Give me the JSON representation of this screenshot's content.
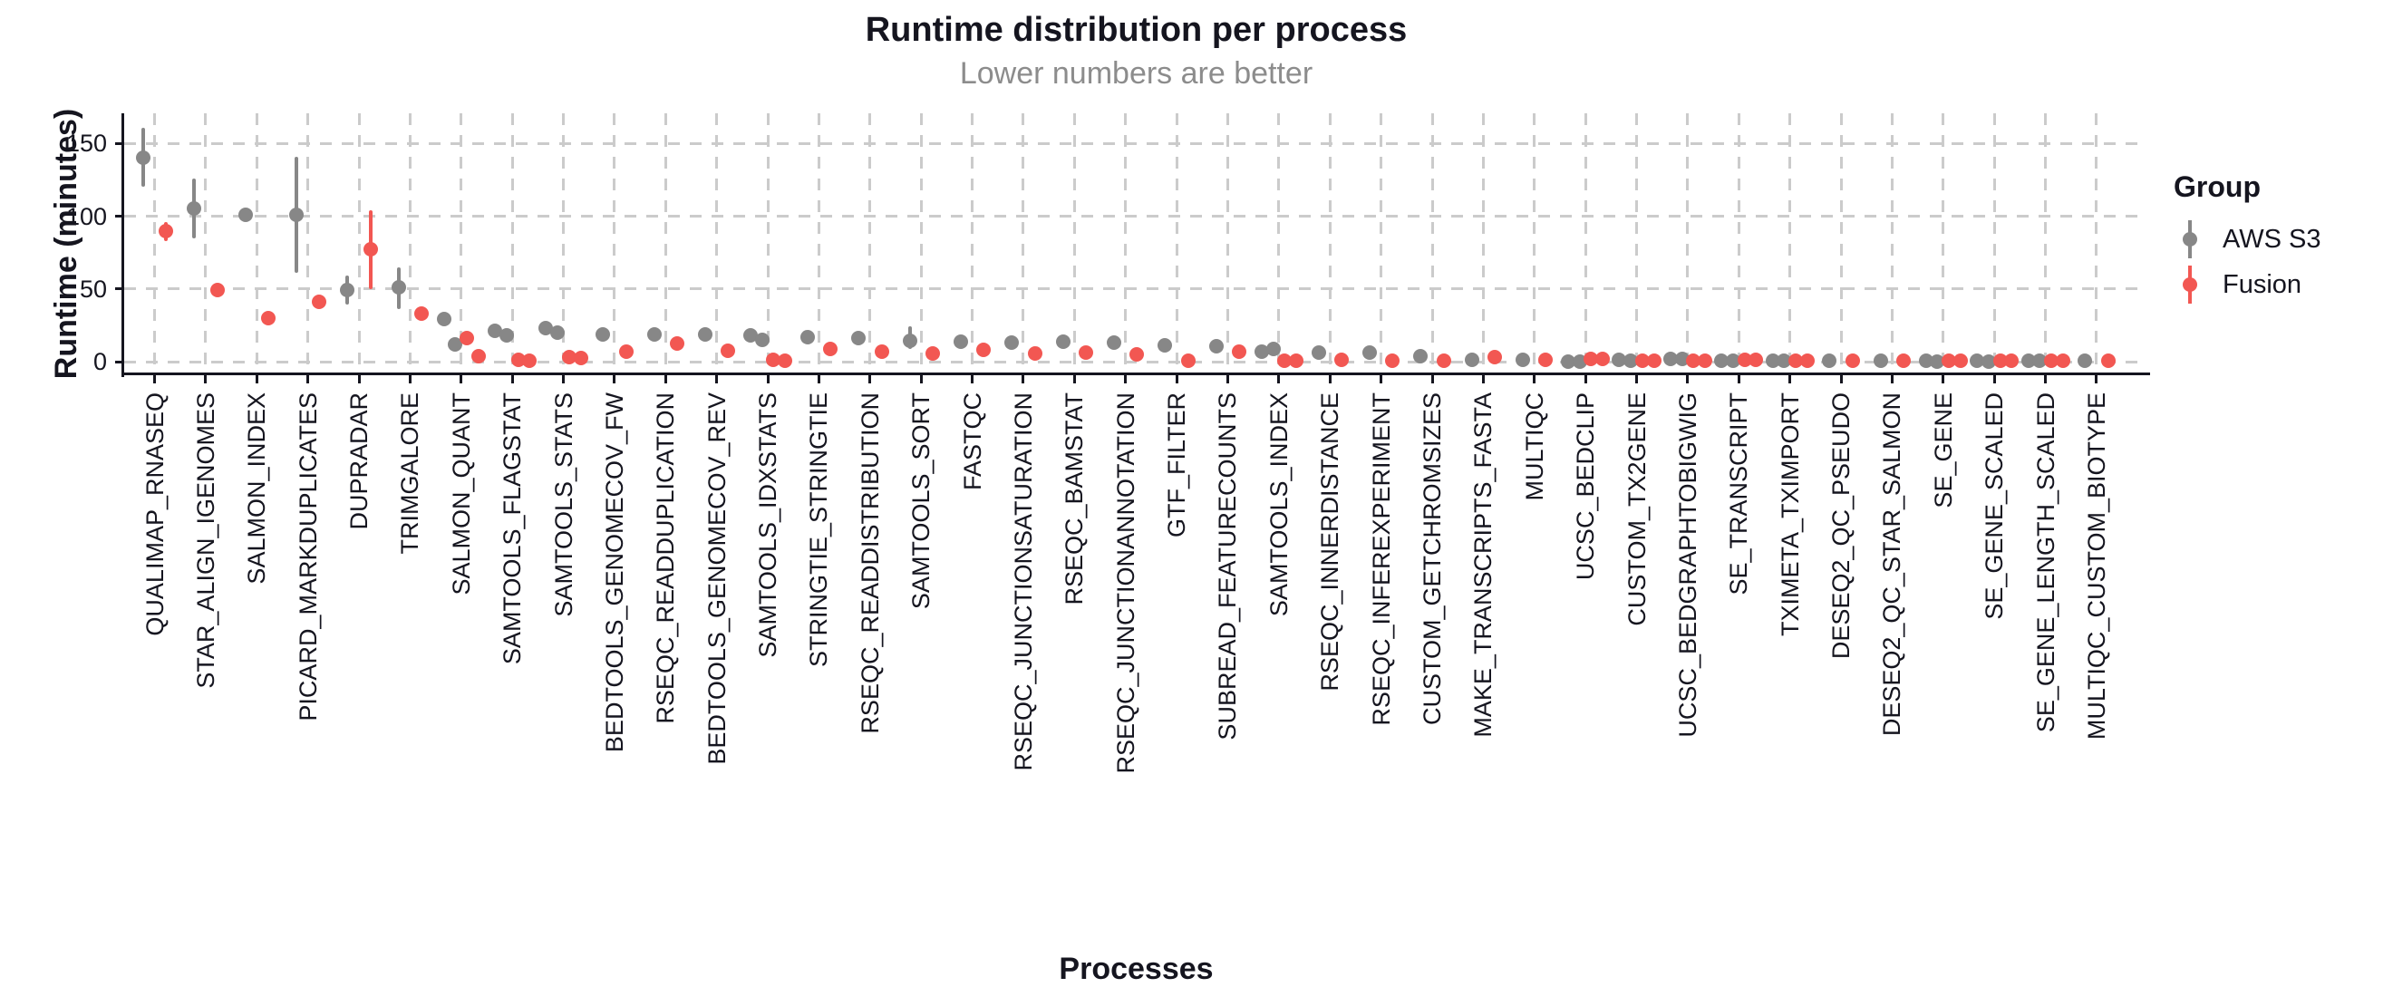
{
  "chart_data": {
    "type": "scatter",
    "subtype": "pointrange-dodged",
    "title": "Runtime distribution per process",
    "subtitle": "Lower numbers are better",
    "xlabel": "Processes",
    "ylabel": "Runtime (minutes)",
    "units": "minutes",
    "ylim": [
      0,
      170
    ],
    "yticks": [
      0,
      50,
      100,
      150
    ],
    "grid": "dashed-horizontal-and-vertical",
    "legend": {
      "title": "Group",
      "position": "right",
      "items": [
        {
          "id": "aws",
          "label": "AWS S3"
        },
        {
          "id": "fusion",
          "label": "Fusion"
        }
      ]
    },
    "colors": {
      "aws": "#878787",
      "fusion": "#F25752",
      "axis": "#15151F",
      "grid": "#CBCBCB",
      "subtitle_text": "#8C8C8C"
    },
    "note": "v = median runtime in minutes; lo/hi = visible range bar; points listed left-to-right per process (AWS S3 first, then Fusion)",
    "processes": [
      {
        "name": "QUALIMAP_RNASEQ",
        "points": [
          {
            "g": "aws",
            "v": 140,
            "lo": 120,
            "hi": 161
          },
          {
            "g": "fusion",
            "v": 90,
            "lo": 83,
            "hi": 96
          }
        ]
      },
      {
        "name": "STAR_ALIGN_IGENOMES",
        "points": [
          {
            "g": "aws",
            "v": 105,
            "lo": 85,
            "hi": 126
          },
          {
            "g": "fusion",
            "v": 49
          }
        ]
      },
      {
        "name": "SALMON_INDEX",
        "points": [
          {
            "g": "aws",
            "v": 101
          },
          {
            "g": "fusion",
            "v": 30
          }
        ]
      },
      {
        "name": "PICARD_MARKDUPLICATES",
        "points": [
          {
            "g": "aws",
            "v": 101,
            "lo": 61,
            "hi": 141
          },
          {
            "g": "fusion",
            "v": 41
          }
        ]
      },
      {
        "name": "DUPRADAR",
        "points": [
          {
            "g": "aws",
            "v": 49,
            "lo": 39,
            "hi": 59
          },
          {
            "g": "fusion",
            "v": 77,
            "lo": 50,
            "hi": 104
          }
        ]
      },
      {
        "name": "TRIMGALORE",
        "points": [
          {
            "g": "aws",
            "v": 51,
            "lo": 36,
            "hi": 65
          },
          {
            "g": "fusion",
            "v": 33
          }
        ]
      },
      {
        "name": "SALMON_QUANT",
        "points": [
          {
            "g": "aws",
            "v": 29
          },
          {
            "g": "aws",
            "v": 12
          },
          {
            "g": "fusion",
            "v": 16
          },
          {
            "g": "fusion",
            "v": 4
          }
        ]
      },
      {
        "name": "SAMTOOLS_FLAGSTAT",
        "points": [
          {
            "g": "aws",
            "v": 21
          },
          {
            "g": "aws",
            "v": 18
          },
          {
            "g": "fusion",
            "v": 1
          },
          {
            "g": "fusion",
            "v": 0.5
          }
        ]
      },
      {
        "name": "SAMTOOLS_STATS",
        "points": [
          {
            "g": "aws",
            "v": 23,
            "lo": 18,
            "hi": 27
          },
          {
            "g": "aws",
            "v": 20
          },
          {
            "g": "fusion",
            "v": 3
          },
          {
            "g": "fusion",
            "v": 2.5
          }
        ]
      },
      {
        "name": "BEDTOOLS_GENOMECOV_FW",
        "points": [
          {
            "g": "aws",
            "v": 19
          },
          {
            "g": "fusion",
            "v": 7
          }
        ]
      },
      {
        "name": "RSEQC_READDUPLICATION",
        "points": [
          {
            "g": "aws",
            "v": 19
          },
          {
            "g": "fusion",
            "v": 12.5
          }
        ]
      },
      {
        "name": "BEDTOOLS_GENOMECOV_REV",
        "points": [
          {
            "g": "aws",
            "v": 19
          },
          {
            "g": "fusion",
            "v": 7.5
          }
        ]
      },
      {
        "name": "SAMTOOLS_IDXSTATS",
        "points": [
          {
            "g": "aws",
            "v": 18
          },
          {
            "g": "aws",
            "v": 15
          },
          {
            "g": "fusion",
            "v": 1
          },
          {
            "g": "fusion",
            "v": 0.5
          }
        ]
      },
      {
        "name": "STRINGTIE_STRINGTIE",
        "points": [
          {
            "g": "aws",
            "v": 17
          },
          {
            "g": "fusion",
            "v": 9
          }
        ]
      },
      {
        "name": "RSEQC_READDISTRIBUTION",
        "points": [
          {
            "g": "aws",
            "v": 16.5
          },
          {
            "g": "fusion",
            "v": 7
          }
        ]
      },
      {
        "name": "SAMTOOLS_SORT",
        "points": [
          {
            "g": "aws",
            "v": 14.5,
            "lo": 9,
            "hi": 24
          },
          {
            "g": "fusion",
            "v": 5.5
          }
        ]
      },
      {
        "name": "FASTQC",
        "points": [
          {
            "g": "aws",
            "v": 14
          },
          {
            "g": "fusion",
            "v": 8
          }
        ]
      },
      {
        "name": "RSEQC_JUNCTIONSATURATION",
        "points": [
          {
            "g": "aws",
            "v": 13
          },
          {
            "g": "fusion",
            "v": 5.5
          }
        ]
      },
      {
        "name": "RSEQC_BAMSTAT",
        "points": [
          {
            "g": "aws",
            "v": 14
          },
          {
            "g": "fusion",
            "v": 6
          }
        ]
      },
      {
        "name": "RSEQC_JUNCTIONANNOTATION",
        "points": [
          {
            "g": "aws",
            "v": 13
          },
          {
            "g": "fusion",
            "v": 5
          }
        ]
      },
      {
        "name": "GTF_FILTER",
        "points": [
          {
            "g": "aws",
            "v": 11.5
          },
          {
            "g": "fusion",
            "v": 0.5
          }
        ]
      },
      {
        "name": "SUBREAD_FEATURECOUNTS",
        "points": [
          {
            "g": "aws",
            "v": 10.5
          },
          {
            "g": "fusion",
            "v": 7
          }
        ]
      },
      {
        "name": "SAMTOOLS_INDEX",
        "points": [
          {
            "g": "aws",
            "v": 7
          },
          {
            "g": "aws",
            "v": 9
          },
          {
            "g": "fusion",
            "v": 0.5
          },
          {
            "g": "fusion",
            "v": 0.5
          }
        ]
      },
      {
        "name": "RSEQC_INNERDISTANCE",
        "points": [
          {
            "g": "aws",
            "v": 6
          },
          {
            "g": "fusion",
            "v": 1
          }
        ]
      },
      {
        "name": "RSEQC_INFEREXPERIMENT",
        "points": [
          {
            "g": "aws",
            "v": 6
          },
          {
            "g": "fusion",
            "v": 0.5
          }
        ]
      },
      {
        "name": "CUSTOM_GETCHROMSIZES",
        "points": [
          {
            "g": "aws",
            "v": 4
          },
          {
            "g": "fusion",
            "v": 0.5
          }
        ]
      },
      {
        "name": "MAKE_TRANSCRIPTS_FASTA",
        "points": [
          {
            "g": "aws",
            "v": 1.5
          },
          {
            "g": "fusion",
            "v": 3
          }
        ]
      },
      {
        "name": "MULTIQC",
        "points": [
          {
            "g": "aws",
            "v": 1.5
          },
          {
            "g": "fusion",
            "v": 1.5
          }
        ]
      },
      {
        "name": "UCSC_BEDCLIP",
        "points": [
          {
            "g": "aws",
            "v": 0.3
          },
          {
            "g": "aws",
            "v": 0.3
          },
          {
            "g": "fusion",
            "v": 2
          },
          {
            "g": "fusion",
            "v": 1.8
          }
        ]
      },
      {
        "name": "CUSTOM_TX2GENE",
        "points": [
          {
            "g": "aws",
            "v": 1
          },
          {
            "g": "aws",
            "v": 0.8
          },
          {
            "g": "fusion",
            "v": 0.5
          },
          {
            "g": "fusion",
            "v": 0.4
          }
        ]
      },
      {
        "name": "UCSC_BEDGRAPHTOBIGWIG",
        "points": [
          {
            "g": "aws",
            "v": 2
          },
          {
            "g": "aws",
            "v": 1.8
          },
          {
            "g": "fusion",
            "v": 0.6
          },
          {
            "g": "fusion",
            "v": 0.4
          }
        ]
      },
      {
        "name": "SE_TRANSCRIPT",
        "points": [
          {
            "g": "aws",
            "v": 0.8
          },
          {
            "g": "aws",
            "v": 0.7
          },
          {
            "g": "fusion",
            "v": 1.5
          },
          {
            "g": "fusion",
            "v": 1.3
          }
        ]
      },
      {
        "name": "TXIMETA_TXIMPORT",
        "points": [
          {
            "g": "aws",
            "v": 0.6
          },
          {
            "g": "aws",
            "v": 0.5
          },
          {
            "g": "fusion",
            "v": 0.8
          },
          {
            "g": "fusion",
            "v": 0.6
          }
        ]
      },
      {
        "name": "DESEQ2_QC_PSEUDO",
        "points": [
          {
            "g": "aws",
            "v": 0.4
          },
          {
            "g": "fusion",
            "v": 0.4
          }
        ]
      },
      {
        "name": "DESEQ2_QC_STAR_SALMON",
        "points": [
          {
            "g": "aws",
            "v": 0.4
          },
          {
            "g": "fusion",
            "v": 0.6
          }
        ]
      },
      {
        "name": "SE_GENE",
        "points": [
          {
            "g": "aws",
            "v": 0.4
          },
          {
            "g": "aws",
            "v": 0.3
          },
          {
            "g": "fusion",
            "v": 0.7
          },
          {
            "g": "fusion",
            "v": 0.6
          }
        ]
      },
      {
        "name": "SE_GENE_SCALED",
        "points": [
          {
            "g": "aws",
            "v": 0.4
          },
          {
            "g": "aws",
            "v": 0.3
          },
          {
            "g": "fusion",
            "v": 0.6
          },
          {
            "g": "fusion",
            "v": 0.5
          }
        ]
      },
      {
        "name": "SE_GENE_LENGTH_SCALED",
        "points": [
          {
            "g": "aws",
            "v": 0.5
          },
          {
            "g": "aws",
            "v": 0.4
          },
          {
            "g": "fusion",
            "v": 0.6
          },
          {
            "g": "fusion",
            "v": 0.5
          }
        ]
      },
      {
        "name": "MULTIQC_CUSTOM_BIOTYPE",
        "points": [
          {
            "g": "aws",
            "v": 0.4
          },
          {
            "g": "fusion",
            "v": 0.6
          }
        ]
      }
    ]
  }
}
